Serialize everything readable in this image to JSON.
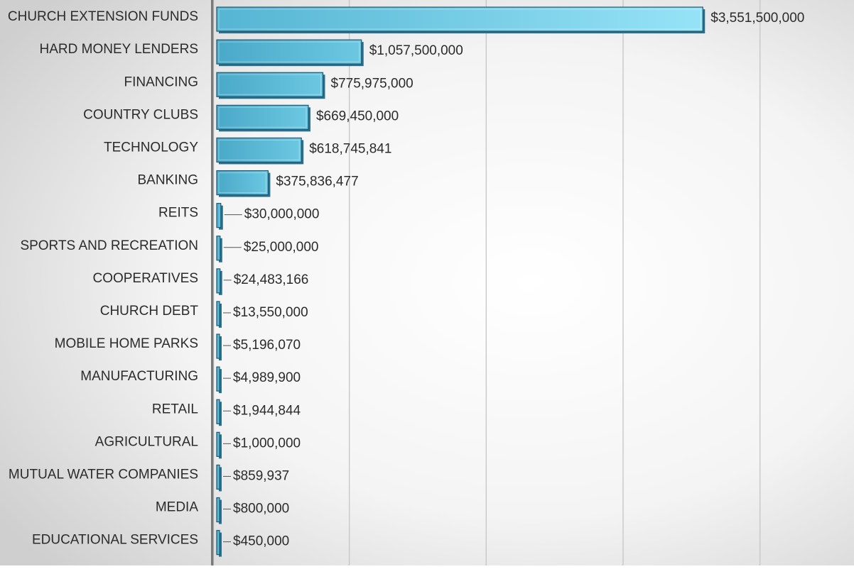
{
  "chart_data": {
    "type": "bar",
    "orientation": "horizontal",
    "three_d": true,
    "categories": [
      "CHURCH EXTENSION FUNDS",
      "HARD MONEY LENDERS",
      "FINANCING",
      "COUNTRY CLUBS",
      "TECHNOLOGY",
      "BANKING",
      "REITS",
      "SPORTS AND RECREATION",
      "COOPERATIVES",
      "CHURCH DEBT",
      "MOBILE HOME PARKS",
      "MANUFACTURING",
      "RETAIL",
      "AGRICULTURAL",
      "MUTUAL WATER COMPANIES",
      "MEDIA",
      "EDUCATIONAL SERVICES"
    ],
    "values": [
      3551500000,
      1057500000,
      775975000,
      669450000,
      618745841,
      375836477,
      30000000,
      25000000,
      24483166,
      13550000,
      5196070,
      4989900,
      1944844,
      1000000,
      859937,
      800000,
      450000
    ],
    "data_labels": [
      "$3,551,500,000",
      "$1,057,500,000",
      "$775,975,000",
      "$669,450,000",
      "$618,745,841",
      "$375,836,477",
      "$30,000,000",
      "$25,000,000",
      "$24,483,166",
      "$13,550,000",
      "$5,196,070",
      "$4,989,900",
      "$1,944,844",
      "$1,000,000",
      "$859,937",
      "$800,000",
      "$450,000"
    ],
    "xlim": [
      0,
      4500000000
    ],
    "grid": true,
    "legend": "none",
    "title": "",
    "xlabel": "",
    "ylabel": "",
    "colors": {
      "bar_light": "#8fd9ee",
      "bar_main": "#5ab8d4",
      "bar_dark": "#2a6f8c",
      "bar_edge": "#1f5870",
      "axis": "#7a7a7a",
      "grid": "#c8c8c8",
      "text": "#2b2b2b"
    }
  }
}
